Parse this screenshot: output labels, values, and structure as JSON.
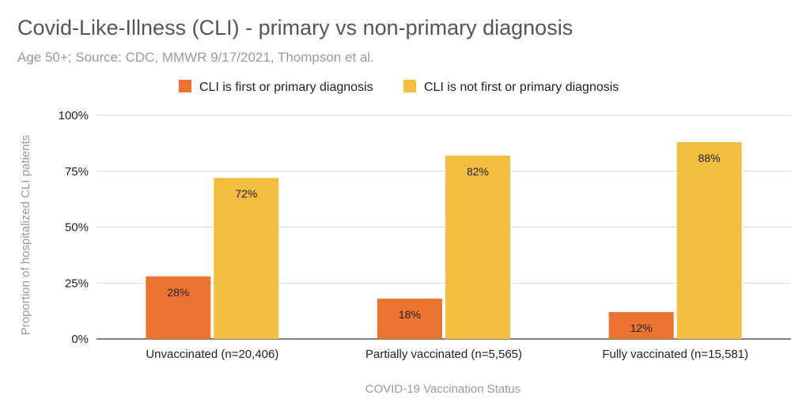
{
  "chart_data": {
    "type": "bar",
    "title": "Covid-Like-Illness (CLI) - primary vs non-primary diagnosis",
    "subtitle": "Age 50+; Source: CDC, MMWR 9/17/2021, Thompson et al.",
    "xlabel": "COVID-19 Vaccination Status",
    "ylabel": "Proportion of hospitalized CLI patients",
    "categories": [
      "Unvaccinated (n=20,406)",
      "Partially vaccinated (n=5,565)",
      "Fully vaccinated (n=15,581)"
    ],
    "series": [
      {
        "name": "CLI is first or primary diagnosis",
        "color": "#ed7430",
        "values": [
          28,
          18,
          12
        ],
        "labels": [
          "28%",
          "18%",
          "12%"
        ]
      },
      {
        "name": "CLI is not first or primary diagnosis",
        "color": "#f3bd40",
        "values": [
          72,
          82,
          88
        ],
        "labels": [
          "72%",
          "82%",
          "88%"
        ]
      }
    ],
    "ylim": [
      0,
      100
    ],
    "yticks": [
      0,
      25,
      50,
      75,
      100
    ],
    "ytick_labels": [
      "0%",
      "25%",
      "50%",
      "75%",
      "100%"
    ],
    "grid": true,
    "legend_position": "top"
  }
}
